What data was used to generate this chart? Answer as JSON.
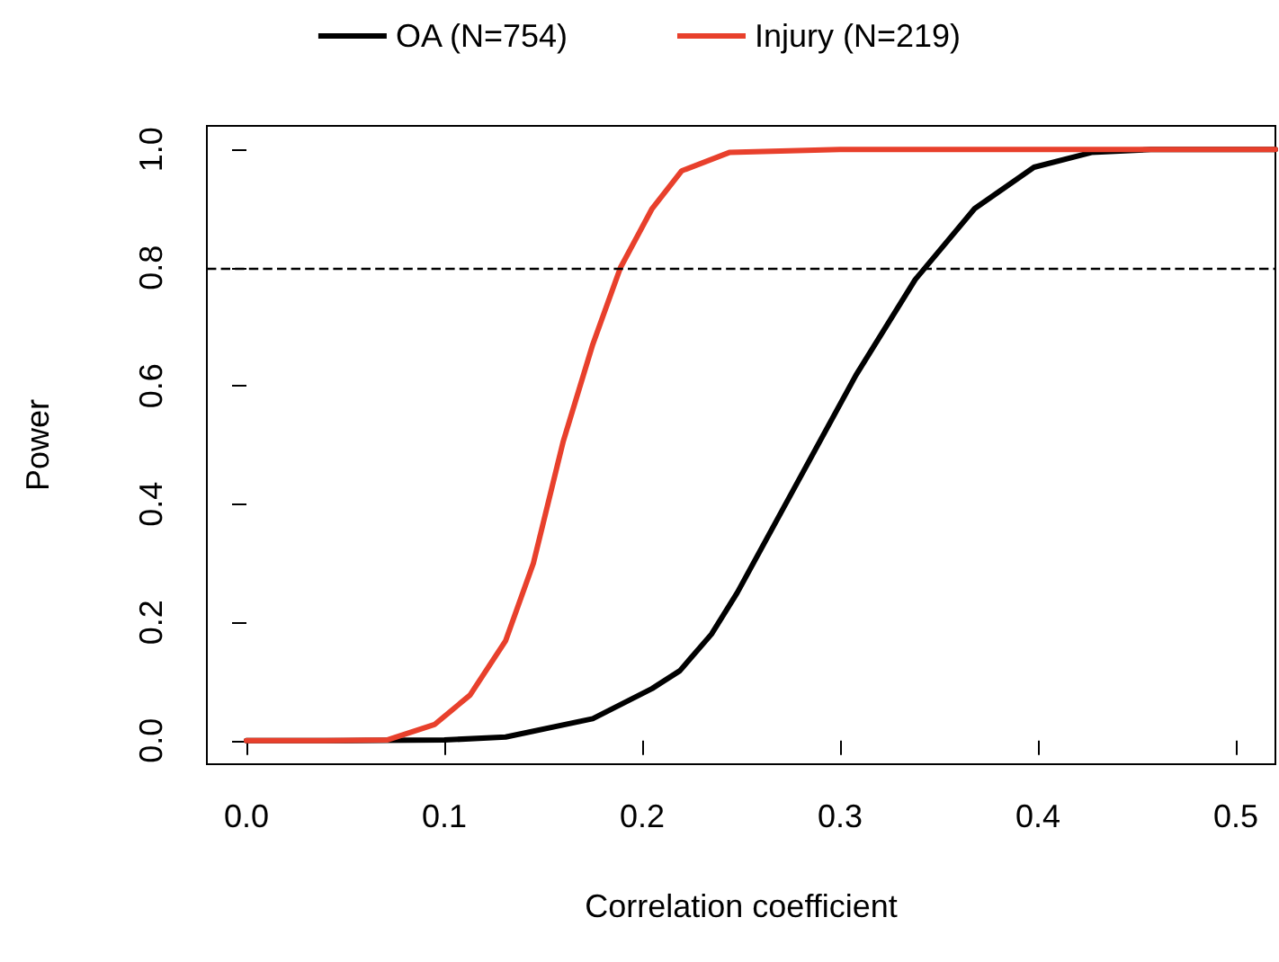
{
  "chart_data": {
    "type": "line",
    "xlabel": "Correlation coefficient",
    "ylabel": "Power",
    "xlim": [
      -0.02,
      0.52
    ],
    "ylim": [
      -0.04,
      1.04
    ],
    "xticks": [
      {
        "value": 0,
        "label": "0.0"
      },
      0.1,
      0.2,
      0.3,
      0.4,
      0.5
    ],
    "yticks": [
      {
        "value": 0,
        "label": "0.0"
      },
      0.2,
      0.4,
      0.6,
      0.8,
      {
        "value": 1,
        "label": "1.0"
      }
    ],
    "legend": "top",
    "grid": false,
    "marker": "none",
    "line_style": "solid",
    "ref_lines": [
      {
        "axis": "y",
        "value": 0.8,
        "color": "#000000",
        "line_style": "dashed"
      }
    ],
    "series": [
      {
        "name": "OA (N=754)",
        "color": "#000000",
        "x": [
          0,
          0.05,
          0.1,
          0.131,
          0.175,
          0.205,
          0.219,
          0.235,
          0.248,
          0.278,
          0.308,
          0.338,
          0.368,
          0.398,
          0.427,
          0.457,
          0.52
        ],
        "values": [
          0,
          0,
          0.001,
          0.006,
          0.037,
          0.088,
          0.118,
          0.18,
          0.25,
          0.434,
          0.618,
          0.78,
          0.9,
          0.97,
          0.995,
          1,
          1
        ]
      },
      {
        "name": "Injury (N=219)",
        "color": "#e8402c",
        "x": [
          0,
          0.04,
          0.071,
          0.095,
          0.113,
          0.131,
          0.145,
          0.16,
          0.175,
          0.189,
          0.205,
          0.22,
          0.244,
          0.3,
          0.52
        ],
        "values": [
          0,
          0,
          0.001,
          0.027,
          0.077,
          0.169,
          0.3,
          0.505,
          0.67,
          0.8,
          0.9,
          0.964,
          0.995,
          1,
          1
        ]
      }
    ]
  }
}
